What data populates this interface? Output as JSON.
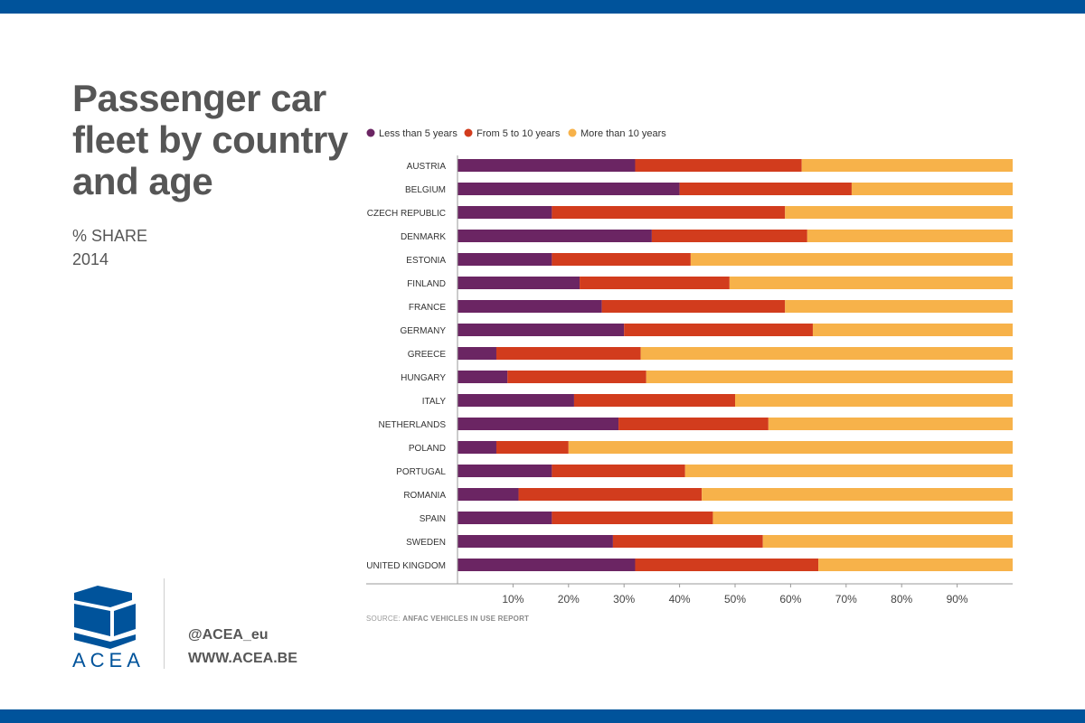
{
  "header": {
    "title": "Passenger car fleet by country and age",
    "subtitle_line1": "% SHARE",
    "subtitle_line2": "2014"
  },
  "footer": {
    "logo_text": "ACEA",
    "twitter": "@ACEA_eu",
    "website": "WWW.ACEA.BE",
    "source_label": "SOURCE:",
    "source_text": "ANFAC VEHICLES IN USE REPORT"
  },
  "colors": {
    "band": "#00539b",
    "less_than_5": "#6b2563",
    "from_5_to_10": "#d23c1d",
    "more_than_10": "#f7b24a"
  },
  "chart_data": {
    "type": "bar",
    "orientation": "horizontal",
    "stacked": true,
    "categories": [
      "AUSTRIA",
      "BELGIUM",
      "CZECH REPUBLIC",
      "DENMARK",
      "ESTONIA",
      "FINLAND",
      "FRANCE",
      "GERMANY",
      "GREECE",
      "HUNGARY",
      "ITALY",
      "NETHERLANDS",
      "POLAND",
      "PORTUGAL",
      "ROMANIA",
      "SPAIN",
      "SWEDEN",
      "UNITED KINGDOM"
    ],
    "series": [
      {
        "name": "Less than 5 years",
        "color": "#6b2563",
        "values": [
          32,
          40,
          17,
          35,
          17,
          22,
          26,
          30,
          7,
          9,
          21,
          29,
          7,
          17,
          11,
          17,
          28,
          32
        ]
      },
      {
        "name": "From 5 to 10 years",
        "color": "#d23c1d",
        "values": [
          30,
          31,
          42,
          28,
          25,
          27,
          33,
          34,
          26,
          25,
          29,
          27,
          13,
          24,
          33,
          29,
          27,
          33
        ]
      },
      {
        "name": "More than 10 years",
        "color": "#f7b24a",
        "values": [
          38,
          29,
          41,
          37,
          58,
          51,
          41,
          36,
          67,
          66,
          50,
          44,
          80,
          59,
          56,
          54,
          45,
          35
        ]
      }
    ],
    "xlim": [
      0,
      100
    ],
    "xticks": [
      "10%",
      "20%",
      "30%",
      "40%",
      "50%",
      "60%",
      "70%",
      "80%",
      "90%"
    ],
    "legend": "top-left",
    "grid": false
  }
}
